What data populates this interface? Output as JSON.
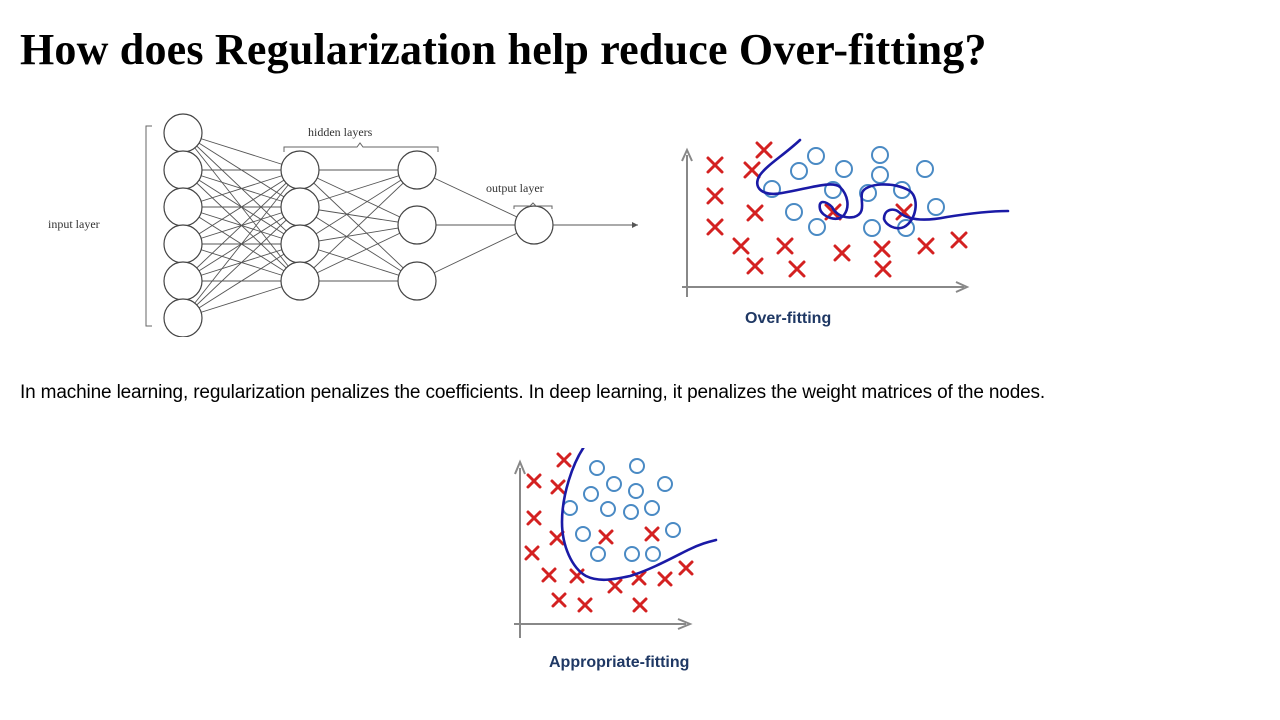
{
  "slide": {
    "title": "How does Regularization help reduce Over-fitting?",
    "body": "In machine learning, regularization penalizes the coefficients. In deep learning, it penalizes the weight matrices of the nodes."
  },
  "network": {
    "labels": {
      "input": "input layer",
      "hidden": "hidden layers",
      "output": "output layer"
    },
    "layer_sizes": [
      6,
      4,
      3,
      1
    ],
    "colors": {
      "line": "#555555",
      "node_fill": "#ffffff"
    }
  },
  "overfitting": {
    "caption": "Over-fitting",
    "caption_color": "#1f3864",
    "curve_color": "#1a1aa6",
    "cross_color": "#d42121",
    "circle_color": "#4a8ac4"
  },
  "appropriate": {
    "caption": "Appropriate-fitting",
    "caption_color": "#1f3864",
    "curve_color": "#1a1aa6",
    "cross_color": "#d42121",
    "circle_color": "#4a8ac4"
  }
}
